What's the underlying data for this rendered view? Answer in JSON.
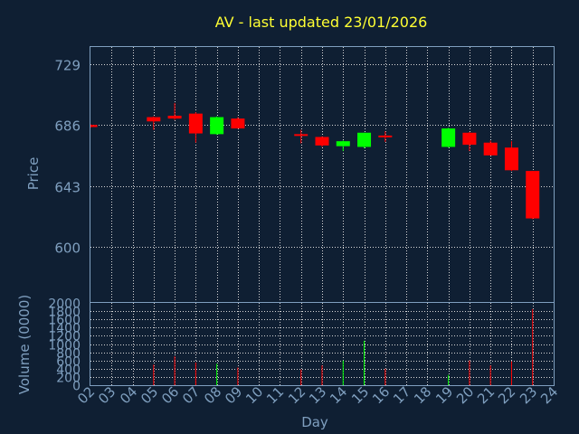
{
  "chart_data": {
    "type": "candlestick",
    "title": "AV - last updated 23/01/2026",
    "xlabel": "Day",
    "price_ylabel": "Price",
    "volume_ylabel": "Volume (0000)",
    "x_ticks": [
      "02",
      "03",
      "04",
      "05",
      "06",
      "07",
      "08",
      "09",
      "10",
      "11",
      "12",
      "13",
      "14",
      "15",
      "16",
      "17",
      "18",
      "19",
      "20",
      "21",
      "22",
      "23",
      "24"
    ],
    "price_ylim": [
      561,
      741
    ],
    "price_ticks": [
      600,
      643,
      686,
      729
    ],
    "volume_ylim": [
      0,
      2000
    ],
    "volume_ticks": [
      0,
      200,
      400,
      600,
      800,
      1000,
      1200,
      1400,
      1600,
      1800,
      2000
    ],
    "up_color": "#00ff00",
    "down_color": "#ff0000",
    "grid": true,
    "candles": [
      {
        "day": "02",
        "open": 686.0,
        "high": 686.5,
        "low": 684.0,
        "close": 684.5,
        "volume": 0
      },
      {
        "day": "05",
        "open": 691.5,
        "high": 692.0,
        "low": 682.5,
        "close": 688.5,
        "volume": 500
      },
      {
        "day": "06",
        "open": 692.5,
        "high": 701.5,
        "low": 689.5,
        "close": 690.5,
        "volume": 700
      },
      {
        "day": "07",
        "open": 694.0,
        "high": 695.0,
        "low": 673.5,
        "close": 680.0,
        "volume": 550
      },
      {
        "day": "08",
        "open": 679.5,
        "high": 692.0,
        "low": 679.0,
        "close": 691.5,
        "volume": 520
      },
      {
        "day": "09",
        "open": 690.5,
        "high": 691.5,
        "low": 683.5,
        "close": 683.5,
        "volume": 430
      },
      {
        "day": "12",
        "open": 679.5,
        "high": 682.5,
        "low": 673.0,
        "close": 678.5,
        "volume": 380
      },
      {
        "day": "13",
        "open": 677.5,
        "high": 678.0,
        "low": 670.5,
        "close": 671.5,
        "volume": 480
      },
      {
        "day": "14",
        "open": 671.0,
        "high": 675.0,
        "low": 667.5,
        "close": 674.5,
        "volume": 600
      },
      {
        "day": "15",
        "open": 670.5,
        "high": 680.5,
        "low": 669.5,
        "close": 680.5,
        "volume": 1080
      },
      {
        "day": "16",
        "open": 678.5,
        "high": 681.5,
        "low": 674.0,
        "close": 677.5,
        "volume": 400
      },
      {
        "day": "19",
        "open": 670.5,
        "high": 684.0,
        "low": 670.0,
        "close": 683.5,
        "volume": 250
      },
      {
        "day": "20",
        "open": 680.5,
        "high": 681.0,
        "low": 667.5,
        "close": 672.0,
        "volume": 600
      },
      {
        "day": "21",
        "open": 673.5,
        "high": 675.0,
        "low": 664.5,
        "close": 664.5,
        "volume": 480
      },
      {
        "day": "22",
        "open": 670.0,
        "high": 674.5,
        "low": 653.5,
        "close": 654.0,
        "volume": 580
      },
      {
        "day": "23",
        "open": 653.5,
        "high": 653.5,
        "low": 619.5,
        "close": 620.0,
        "volume": 1850
      }
    ]
  }
}
